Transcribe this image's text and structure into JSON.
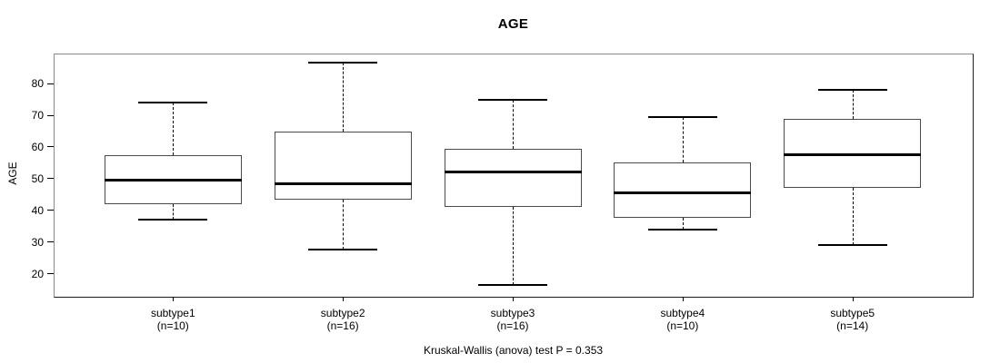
{
  "chart_data": {
    "type": "boxplot",
    "title": "AGE",
    "ylabel": "AGE",
    "xlabel": "",
    "ylim": [
      13,
      89.5
    ],
    "yticks": [
      20,
      30,
      40,
      50,
      60,
      70,
      80
    ],
    "grid": false,
    "legend": null,
    "annotation": "Kruskal-Wallis (anova) test P = 0.353",
    "groups": [
      {
        "label": "subtype1",
        "n_label": "(n=10)",
        "n": 10,
        "whisker_low": 37,
        "q1": 42,
        "median": 49.5,
        "q3": 57.5,
        "whisker_high": 74
      },
      {
        "label": "subtype2",
        "n_label": "(n=16)",
        "n": 16,
        "whisker_low": 27.5,
        "q1": 43.5,
        "median": 48.5,
        "q3": 65,
        "whisker_high": 86.5
      },
      {
        "label": "subtype3",
        "n_label": "(n=16)",
        "n": 16,
        "whisker_low": 16.5,
        "q1": 41,
        "median": 52,
        "q3": 59.5,
        "whisker_high": 75
      },
      {
        "label": "subtype4",
        "n_label": "(n=10)",
        "n": 10,
        "whisker_low": 34,
        "q1": 37.5,
        "median": 45.5,
        "q3": 55,
        "whisker_high": 69.5
      },
      {
        "label": "subtype5",
        "n_label": "(n=14)",
        "n": 14,
        "whisker_low": 29,
        "q1": 47,
        "median": 57.5,
        "q3": 69,
        "whisker_high": 78
      }
    ],
    "colors": {
      "box_fill": "#ffffff",
      "line": "#000000",
      "frame_light": "#8a8a8a",
      "frame_dark": "#1c1c1c"
    }
  }
}
